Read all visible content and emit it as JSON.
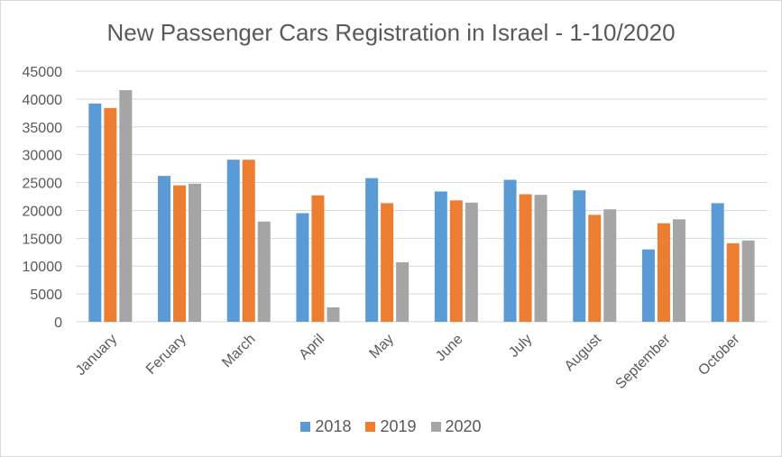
{
  "chart_data": {
    "type": "bar",
    "title": "New Passenger Cars Registration in Israel - 1-10/2020",
    "categories": [
      "January",
      "Feruary",
      "March",
      "April",
      "May",
      "June",
      "July",
      "August",
      "September",
      "October"
    ],
    "series": [
      {
        "name": "2018",
        "color": "#5b9bd5",
        "values": [
          39200,
          26200,
          29100,
          19500,
          25800,
          23400,
          25500,
          23600,
          13000,
          21300
        ]
      },
      {
        "name": "2019",
        "color": "#ed7d31",
        "values": [
          38400,
          24500,
          29100,
          22700,
          21300,
          21800,
          22900,
          19200,
          17700,
          14100
        ]
      },
      {
        "name": "2020",
        "color": "#a5a5a5",
        "values": [
          41600,
          24800,
          18000,
          2600,
          10700,
          21400,
          22800,
          20200,
          18400,
          14600
        ]
      }
    ],
    "yticks": [
      0,
      5000,
      10000,
      15000,
      20000,
      25000,
      30000,
      35000,
      40000,
      45000
    ],
    "ylim": [
      0,
      45000
    ],
    "grid": true,
    "legend_position": "bottom"
  }
}
